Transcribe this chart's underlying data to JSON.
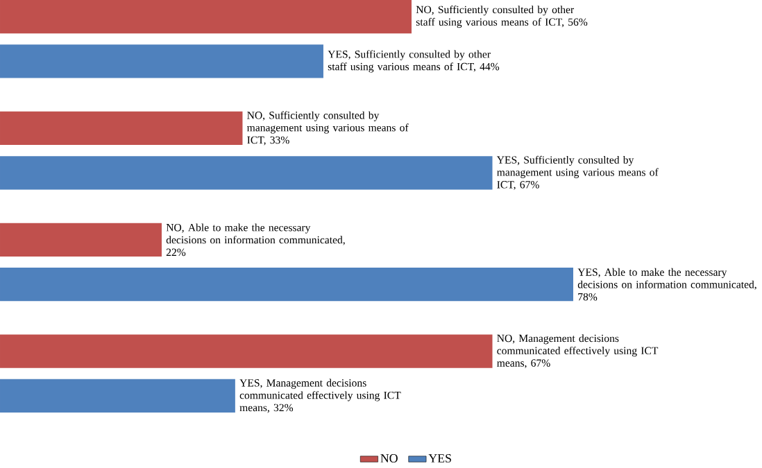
{
  "chart_data": {
    "type": "bar",
    "orientation": "horizontal",
    "categories": [
      null,
      null,
      null,
      null
    ],
    "legend": "bottom",
    "series": [
      {
        "name": "NO",
        "color": "#c0504d",
        "values": [
          56,
          33,
          22,
          67
        ],
        "value_labels": [
          "NO, Sufficiently consulted by other staff using various means of ICT, 56%",
          "NO, Sufficiently consulted by management using various means of ICT, 33%",
          "NO, Able to make the necessary decisions on information communicated, 22%",
          "NO, Management decisions communicated effectively using ICT means, 67%"
        ]
      },
      {
        "name": "YES",
        "color": "#4f81bd",
        "values": [
          44,
          67,
          78,
          32
        ],
        "value_labels": [
          "YES, Sufficiently consulted by other staff using various means of ICT, 44%",
          "YES, Sufficiently consulted by management using various means of ICT, 67%",
          "YES, Able to make the necessary decisions on information communicated, 78%",
          "YES, Management decisions communicated effectively using ICT means, 32%"
        ]
      }
    ]
  }
}
